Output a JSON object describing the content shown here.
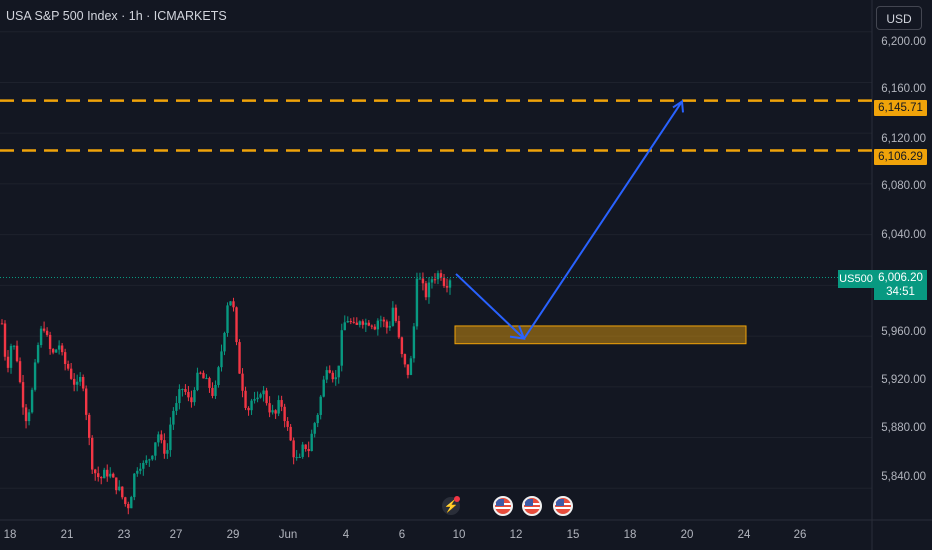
{
  "header": {
    "title": "USA S&P 500 Index · 1h · ICMARKETS",
    "currency": "USD"
  },
  "price_axis": [
    "6,200.00",
    "6,160.00",
    "6,120.00",
    "6,080.00",
    "6,040.00",
    "5,960.00",
    "5,920.00",
    "5,880.00",
    "5,840.00"
  ],
  "date_axis": [
    "18",
    "21",
    "23",
    "27",
    "29",
    "Jun",
    "4",
    "6",
    "10",
    "12",
    "15",
    "18",
    "20",
    "24",
    "26"
  ],
  "levels": [
    {
      "price": "6,145.71",
      "color": "#f0a30a"
    },
    {
      "price": "6,106.29",
      "color": "#f0a30a"
    }
  ],
  "current": {
    "symbol": "US500",
    "price": "6,006.20",
    "countdown": "34:51"
  },
  "colors": {
    "background": "#131722",
    "up": "#089981",
    "down": "#f23645",
    "level": "#f0a30a",
    "arrow": "#2962ff",
    "zone": "#f0a30a"
  },
  "icons": {
    "events": [
      "us-flag-icon",
      "us-flag-icon",
      "us-flag-icon"
    ],
    "flash": "lightning-icon"
  },
  "chart_data": {
    "type": "candlestick",
    "title": "USA S&P 500 Index · 1h · ICMARKETS",
    "symbol": "US500",
    "timeframe": "1h",
    "y_range": [
      5815,
      6225
    ],
    "last_price": 6006.2,
    "horizontal_levels": [
      6145.71,
      6106.29
    ],
    "support_zone": [
      5954,
      5968
    ],
    "projection_path": [
      6009,
      5958,
      6145
    ],
    "close_path": [
      5970,
      5932,
      5955,
      5948,
      5918,
      5895,
      5905,
      5935,
      5962,
      5968,
      5950,
      5945,
      5955,
      5940,
      5935,
      5925,
      5920,
      5930,
      5895,
      5860,
      5850,
      5848,
      5853,
      5850,
      5843,
      5838,
      5828,
      5826,
      5850,
      5860,
      5858,
      5862,
      5870,
      5885,
      5872,
      5868,
      5900,
      5905,
      5920,
      5915,
      5905,
      5925,
      5930,
      5925,
      5920,
      5912,
      5935,
      5960,
      5992,
      5985,
      5940,
      5920,
      5900,
      5910,
      5905,
      5920,
      5910,
      5900,
      5898,
      5910,
      5895,
      5880,
      5865,
      5860,
      5875,
      5870,
      5888,
      5900,
      5920,
      5940,
      5930,
      5925,
      5960,
      5975,
      5970,
      5965,
      5975,
      5970,
      5972,
      5968,
      5975,
      5970,
      5965,
      5985,
      5960,
      5940,
      5930,
      5945,
      6010,
      6000,
      5992,
      6005,
      6008,
      6010,
      6000,
      6006
    ]
  }
}
